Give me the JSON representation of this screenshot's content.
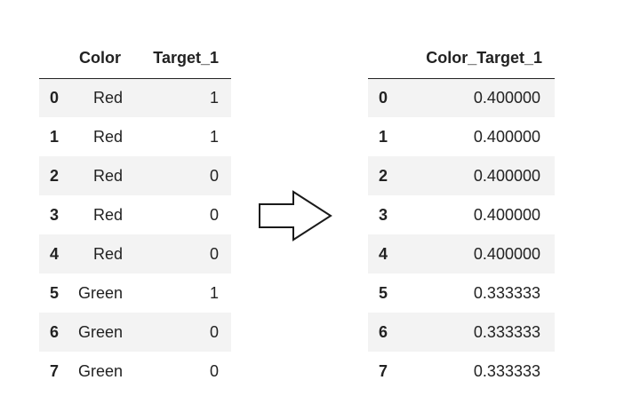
{
  "left_table": {
    "columns": [
      "",
      "Color",
      "Target_1"
    ],
    "rows": [
      {
        "index": "0",
        "color": "Red",
        "target": "1"
      },
      {
        "index": "1",
        "color": "Red",
        "target": "1"
      },
      {
        "index": "2",
        "color": "Red",
        "target": "0"
      },
      {
        "index": "3",
        "color": "Red",
        "target": "0"
      },
      {
        "index": "4",
        "color": "Red",
        "target": "0"
      },
      {
        "index": "5",
        "color": "Green",
        "target": "1"
      },
      {
        "index": "6",
        "color": "Green",
        "target": "0"
      },
      {
        "index": "7",
        "color": "Green",
        "target": "0"
      }
    ]
  },
  "arrow": {
    "icon": "right-arrow-icon"
  },
  "right_table": {
    "columns": [
      "",
      "Color_Target_1"
    ],
    "rows": [
      {
        "index": "0",
        "value": "0.400000"
      },
      {
        "index": "1",
        "value": "0.400000"
      },
      {
        "index": "2",
        "value": "0.400000"
      },
      {
        "index": "3",
        "value": "0.400000"
      },
      {
        "index": "4",
        "value": "0.400000"
      },
      {
        "index": "5",
        "value": "0.333333"
      },
      {
        "index": "6",
        "value": "0.333333"
      },
      {
        "index": "7",
        "value": "0.333333"
      }
    ]
  }
}
